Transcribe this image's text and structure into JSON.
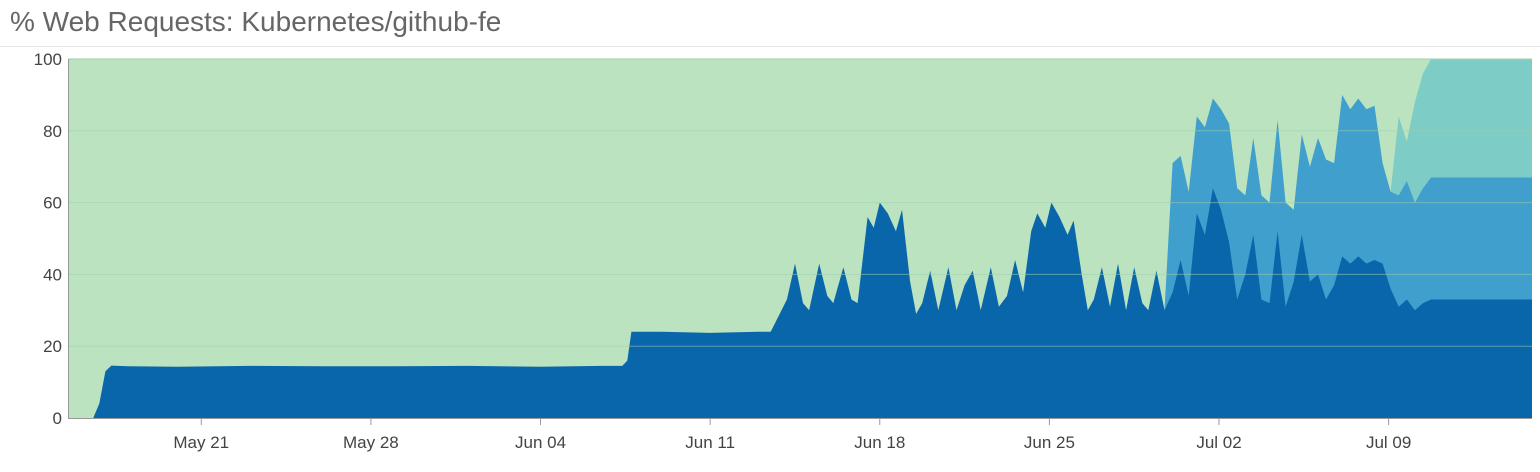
{
  "header": {
    "title": "% Web Requests: Kubernetes/github-fe"
  },
  "colors": {
    "background_band": "#bbe3c0",
    "series_dark": "#0a66aa",
    "series_mid": "#409fcc",
    "series_light": "#7dcdc6",
    "grid": "#9fd2ac",
    "axis": "#999999"
  },
  "chart_data": {
    "type": "area",
    "stacked": true,
    "title": "% Web Requests: Kubernetes/github-fe",
    "xlabel": "",
    "ylabel": "",
    "ylim": [
      0,
      100
    ],
    "y_ticks": [
      0,
      20,
      40,
      60,
      80,
      100
    ],
    "x_ticks": [
      "May 21",
      "May 28",
      "Jun 04",
      "Jun 11",
      "Jun 18",
      "Jun 25",
      "Jul 02",
      "Jul 09"
    ],
    "x_tick_dates": [
      "2018-05-21",
      "2018-05-28",
      "2018-06-04",
      "2018-06-11",
      "2018-06-18",
      "2018-06-25",
      "2018-07-02",
      "2018-07-09"
    ],
    "xlim": [
      "2018-05-15T12:00",
      "2018-07-14T22:00"
    ],
    "grid": true,
    "legend": "none",
    "series": [
      {
        "color": "#0a66aa",
        "points": [
          [
            "2018-05-16T13:00",
            0
          ],
          [
            "2018-05-16T19:00",
            4
          ],
          [
            "2018-05-17T01:00",
            13
          ],
          [
            "2018-05-17T07:00",
            14.6
          ],
          [
            "2018-05-18T00:00",
            14.4
          ],
          [
            "2018-05-20T00:00",
            14.3
          ],
          [
            "2018-05-23T00:00",
            14.5
          ],
          [
            "2018-05-26T00:00",
            14.4
          ],
          [
            "2018-05-29T00:00",
            14.4
          ],
          [
            "2018-06-01T00:00",
            14.5
          ],
          [
            "2018-06-04T00:00",
            14.3
          ],
          [
            "2018-06-06T12:00",
            14.5
          ],
          [
            "2018-06-07T09:00",
            14.5
          ],
          [
            "2018-06-07T14:00",
            16
          ],
          [
            "2018-06-07T18:00",
            24
          ],
          [
            "2018-06-09T00:00",
            24
          ],
          [
            "2018-06-11T00:00",
            23.7
          ],
          [
            "2018-06-13T00:00",
            24
          ],
          [
            "2018-06-13T12:00",
            24
          ],
          [
            "2018-06-14T04:00",
            33
          ],
          [
            "2018-06-14T12:00",
            43
          ],
          [
            "2018-06-14T20:00",
            32
          ],
          [
            "2018-06-15T02:00",
            30
          ],
          [
            "2018-06-15T12:00",
            43
          ],
          [
            "2018-06-15T20:00",
            34
          ],
          [
            "2018-06-16T02:00",
            32
          ],
          [
            "2018-06-16T12:00",
            42
          ],
          [
            "2018-06-16T20:00",
            33
          ],
          [
            "2018-06-17T02:00",
            32
          ],
          [
            "2018-06-17T12:00",
            56
          ],
          [
            "2018-06-17T18:00",
            53
          ],
          [
            "2018-06-18T00:00",
            60
          ],
          [
            "2018-06-18T08:00",
            57
          ],
          [
            "2018-06-18T16:00",
            52
          ],
          [
            "2018-06-18T22:00",
            58
          ],
          [
            "2018-06-19T06:00",
            38
          ],
          [
            "2018-06-19T12:00",
            29
          ],
          [
            "2018-06-19T18:00",
            32
          ],
          [
            "2018-06-20T02:00",
            41
          ],
          [
            "2018-06-20T10:00",
            30
          ],
          [
            "2018-06-20T20:00",
            42
          ],
          [
            "2018-06-21T04:00",
            30
          ],
          [
            "2018-06-21T12:00",
            37
          ],
          [
            "2018-06-21T20:00",
            41
          ],
          [
            "2018-06-22T04:00",
            30
          ],
          [
            "2018-06-22T14:00",
            42
          ],
          [
            "2018-06-22T22:00",
            31
          ],
          [
            "2018-06-23T06:00",
            34
          ],
          [
            "2018-06-23T14:00",
            44
          ],
          [
            "2018-06-23T22:00",
            35
          ],
          [
            "2018-06-24T06:00",
            52
          ],
          [
            "2018-06-24T12:00",
            57
          ],
          [
            "2018-06-24T20:00",
            53
          ],
          [
            "2018-06-25T02:00",
            60
          ],
          [
            "2018-06-25T10:00",
            56
          ],
          [
            "2018-06-25T18:00",
            51
          ],
          [
            "2018-06-26T00:00",
            55
          ],
          [
            "2018-06-26T08:00",
            40
          ],
          [
            "2018-06-26T14:00",
            30
          ],
          [
            "2018-06-26T20:00",
            33
          ],
          [
            "2018-06-27T04:00",
            42
          ],
          [
            "2018-06-27T12:00",
            31
          ],
          [
            "2018-06-27T20:00",
            43
          ],
          [
            "2018-06-28T04:00",
            30
          ],
          [
            "2018-06-28T12:00",
            42
          ],
          [
            "2018-06-28T20:00",
            32
          ],
          [
            "2018-06-29T02:00",
            30
          ],
          [
            "2018-06-29T10:00",
            41
          ],
          [
            "2018-06-29T18:00",
            30
          ],
          [
            "2018-06-30T02:00",
            35
          ],
          [
            "2018-06-30T10:00",
            44
          ],
          [
            "2018-06-30T18:00",
            34
          ],
          [
            "2018-07-01T02:00",
            57
          ],
          [
            "2018-07-01T10:00",
            51
          ],
          [
            "2018-07-01T18:00",
            64
          ],
          [
            "2018-07-02T02:00",
            58
          ],
          [
            "2018-07-02T10:00",
            49
          ],
          [
            "2018-07-02T18:00",
            33
          ],
          [
            "2018-07-03T02:00",
            40
          ],
          [
            "2018-07-03T10:00",
            51
          ],
          [
            "2018-07-03T18:00",
            33
          ],
          [
            "2018-07-04T02:00",
            32
          ],
          [
            "2018-07-04T10:00",
            52
          ],
          [
            "2018-07-04T18:00",
            31
          ],
          [
            "2018-07-05T02:00",
            38
          ],
          [
            "2018-07-05T10:00",
            51
          ],
          [
            "2018-07-05T18:00",
            38
          ],
          [
            "2018-07-06T02:00",
            40
          ],
          [
            "2018-07-06T10:00",
            33
          ],
          [
            "2018-07-06T18:00",
            37
          ],
          [
            "2018-07-07T02:00",
            45
          ],
          [
            "2018-07-07T10:00",
            43
          ],
          [
            "2018-07-07T18:00",
            45
          ],
          [
            "2018-07-08T02:00",
            43
          ],
          [
            "2018-07-08T10:00",
            44
          ],
          [
            "2018-07-08T18:00",
            43
          ],
          [
            "2018-07-09T02:00",
            36
          ],
          [
            "2018-07-09T10:00",
            31
          ],
          [
            "2018-07-09T18:00",
            33
          ],
          [
            "2018-07-10T02:00",
            30
          ],
          [
            "2018-07-10T10:00",
            32
          ],
          [
            "2018-07-10T18:00",
            33
          ],
          [
            "2018-07-14T22:00",
            33
          ]
        ]
      },
      {
        "color": "#409fcc",
        "points": [
          [
            "2018-06-29T10:00",
            41
          ],
          [
            "2018-06-29T18:00",
            30
          ],
          [
            "2018-06-30T02:00",
            71
          ],
          [
            "2018-06-30T10:00",
            73
          ],
          [
            "2018-06-30T18:00",
            63
          ],
          [
            "2018-07-01T02:00",
            84
          ],
          [
            "2018-07-01T10:00",
            81
          ],
          [
            "2018-07-01T18:00",
            89
          ],
          [
            "2018-07-02T02:00",
            86
          ],
          [
            "2018-07-02T10:00",
            82
          ],
          [
            "2018-07-02T18:00",
            64
          ],
          [
            "2018-07-03T02:00",
            62
          ],
          [
            "2018-07-03T10:00",
            78
          ],
          [
            "2018-07-03T18:00",
            62
          ],
          [
            "2018-07-04T02:00",
            60
          ],
          [
            "2018-07-04T10:00",
            83
          ],
          [
            "2018-07-04T18:00",
            60
          ],
          [
            "2018-07-05T02:00",
            58
          ],
          [
            "2018-07-05T10:00",
            79
          ],
          [
            "2018-07-05T18:00",
            70
          ],
          [
            "2018-07-06T02:00",
            78
          ],
          [
            "2018-07-06T10:00",
            72
          ],
          [
            "2018-07-06T18:00",
            71
          ],
          [
            "2018-07-07T02:00",
            90
          ],
          [
            "2018-07-07T10:00",
            86
          ],
          [
            "2018-07-07T18:00",
            89
          ],
          [
            "2018-07-08T02:00",
            86
          ],
          [
            "2018-07-08T10:00",
            87
          ],
          [
            "2018-07-08T18:00",
            71
          ],
          [
            "2018-07-09T02:00",
            63
          ],
          [
            "2018-07-09T10:00",
            62
          ],
          [
            "2018-07-09T18:00",
            66
          ],
          [
            "2018-07-10T02:00",
            60
          ],
          [
            "2018-07-10T10:00",
            64
          ],
          [
            "2018-07-10T18:00",
            67
          ],
          [
            "2018-07-14T22:00",
            67
          ]
        ]
      },
      {
        "color": "#7dcdc6",
        "points": [
          [
            "2018-07-09T02:00",
            63
          ],
          [
            "2018-07-09T10:00",
            84
          ],
          [
            "2018-07-09T18:00",
            77
          ],
          [
            "2018-07-10T02:00",
            88
          ],
          [
            "2018-07-10T10:00",
            96
          ],
          [
            "2018-07-10T18:00",
            100
          ],
          [
            "2018-07-14T22:00",
            100
          ]
        ]
      }
    ]
  }
}
